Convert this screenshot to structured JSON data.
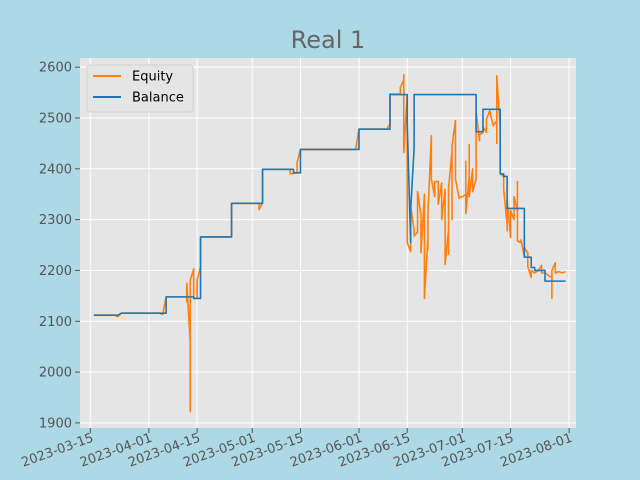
{
  "chart_data": {
    "type": "line",
    "title": "Real 1",
    "xlabel": "",
    "ylabel": "",
    "x_axis": "date",
    "xlim": [
      "2023-03-12",
      "2023-08-03"
    ],
    "ylim": [
      1890,
      2618
    ],
    "grid": true,
    "legend_position": "top-left",
    "xticks": [
      "2023-03-15",
      "2023-04-01",
      "2023-04-15",
      "2023-05-01",
      "2023-05-15",
      "2023-06-01",
      "2023-06-15",
      "2023-07-01",
      "2023-07-15",
      "2023-08-01"
    ],
    "yticks": [
      1900,
      2000,
      2100,
      2200,
      2300,
      2400,
      2500,
      2600
    ],
    "colors": {
      "background": "#add8e6",
      "plot_area": "#e5e5e5",
      "grid": "#ffffff",
      "title": "#666666",
      "ticks": "#555555"
    },
    "series": [
      {
        "name": "Equity",
        "color": "#ff7f0e",
        "points": [
          [
            "2023-03-16",
            2112
          ],
          [
            "2023-03-22",
            2112
          ],
          [
            "2023-03-23",
            2109
          ],
          [
            "2023-03-24",
            2116
          ],
          [
            "2023-04-04",
            2116
          ],
          [
            "2023-04-05",
            2113
          ],
          [
            "2023-04-06",
            2148
          ],
          [
            "2023-04-12",
            2148
          ],
          [
            "2023-04-12",
            2138
          ],
          [
            "2023-04-12",
            2175
          ],
          [
            "2023-04-13",
            2060
          ],
          [
            "2023-04-13",
            1990
          ],
          [
            "2023-04-13",
            1935
          ],
          [
            "2023-04-13",
            2005
          ],
          [
            "2023-04-13",
            1922
          ],
          [
            "2023-04-13",
            2180
          ],
          [
            "2023-04-14",
            2203
          ],
          [
            "2023-04-14",
            2145
          ],
          [
            "2023-04-15",
            2145
          ],
          [
            "2023-04-15",
            2180
          ],
          [
            "2023-04-16",
            2208
          ],
          [
            "2023-04-16",
            2220
          ],
          [
            "2023-04-16",
            2266
          ],
          [
            "2023-04-25",
            2266
          ],
          [
            "2023-04-25",
            2312
          ],
          [
            "2023-04-25",
            2332
          ],
          [
            "2023-05-03",
            2332
          ],
          [
            "2023-05-03",
            2320
          ],
          [
            "2023-05-04",
            2333
          ],
          [
            "2023-05-04",
            2399
          ],
          [
            "2023-05-12",
            2399
          ],
          [
            "2023-05-12",
            2390
          ],
          [
            "2023-05-14",
            2392
          ],
          [
            "2023-05-14",
            2412
          ],
          [
            "2023-05-15",
            2438
          ],
          [
            "2023-05-31",
            2438
          ],
          [
            "2023-06-01",
            2478
          ],
          [
            "2023-06-09",
            2478
          ],
          [
            "2023-06-10",
            2488
          ],
          [
            "2023-06-10",
            2547
          ],
          [
            "2023-06-13",
            2547
          ],
          [
            "2023-06-13",
            2560
          ],
          [
            "2023-06-14",
            2575
          ],
          [
            "2023-06-14",
            2540
          ],
          [
            "2023-06-14",
            2585
          ],
          [
            "2023-06-14",
            2432
          ],
          [
            "2023-06-15",
            2545
          ],
          [
            "2023-06-15",
            2475
          ],
          [
            "2023-06-15",
            2305
          ],
          [
            "2023-06-15",
            2255
          ],
          [
            "2023-06-16",
            2237
          ],
          [
            "2023-06-16",
            2270
          ],
          [
            "2023-06-16",
            2325
          ],
          [
            "2023-06-17",
            2280
          ],
          [
            "2023-06-17",
            2268
          ],
          [
            "2023-06-18",
            2275
          ],
          [
            "2023-06-18",
            2330
          ],
          [
            "2023-06-18",
            2285
          ],
          [
            "2023-06-18",
            2355
          ],
          [
            "2023-06-19",
            2308
          ],
          [
            "2023-06-19",
            2256
          ],
          [
            "2023-06-19",
            2235
          ],
          [
            "2023-06-20",
            2350
          ],
          [
            "2023-06-20",
            2215
          ],
          [
            "2023-06-20",
            2175
          ],
          [
            "2023-06-20",
            2145
          ],
          [
            "2023-06-21",
            2265
          ],
          [
            "2023-06-21",
            2240
          ],
          [
            "2023-06-21",
            2310
          ],
          [
            "2023-06-22",
            2465
          ],
          [
            "2023-06-22",
            2380
          ],
          [
            "2023-06-23",
            2345
          ],
          [
            "2023-06-23",
            2375
          ],
          [
            "2023-06-24",
            2375
          ],
          [
            "2023-06-24",
            2330
          ],
          [
            "2023-06-25",
            2372
          ],
          [
            "2023-06-25",
            2315
          ],
          [
            "2023-06-25",
            2300
          ],
          [
            "2023-06-26",
            2360
          ],
          [
            "2023-06-26",
            2245
          ],
          [
            "2023-06-26",
            2212
          ],
          [
            "2023-06-27",
            2280
          ],
          [
            "2023-06-27",
            2232
          ],
          [
            "2023-06-27",
            2362
          ],
          [
            "2023-06-28",
            2435
          ],
          [
            "2023-06-28",
            2300
          ],
          [
            "2023-06-28",
            2395
          ],
          [
            "2023-06-28",
            2445
          ],
          [
            "2023-06-29",
            2495
          ],
          [
            "2023-06-29",
            2380
          ],
          [
            "2023-06-30",
            2345
          ],
          [
            "2023-06-30",
            2342
          ],
          [
            "2023-07-01",
            2345
          ],
          [
            "2023-07-02",
            2350
          ],
          [
            "2023-07-02",
            2415
          ],
          [
            "2023-07-02",
            2312
          ],
          [
            "2023-07-03",
            2385
          ],
          [
            "2023-07-03",
            2448
          ],
          [
            "2023-07-03",
            2345
          ],
          [
            "2023-07-04",
            2400
          ],
          [
            "2023-07-04",
            2355
          ],
          [
            "2023-07-05",
            2380
          ],
          [
            "2023-07-05",
            2455
          ],
          [
            "2023-07-05",
            2512
          ],
          [
            "2023-07-06",
            2455
          ],
          [
            "2023-07-06",
            2467
          ],
          [
            "2023-07-07",
            2472
          ],
          [
            "2023-07-07",
            2482
          ],
          [
            "2023-07-08",
            2472
          ],
          [
            "2023-07-08",
            2498
          ],
          [
            "2023-07-09",
            2515
          ],
          [
            "2023-07-09",
            2512
          ],
          [
            "2023-07-10",
            2485
          ],
          [
            "2023-07-11",
            2495
          ],
          [
            "2023-07-11",
            2450
          ],
          [
            "2023-07-11",
            2583
          ],
          [
            "2023-07-12",
            2480
          ],
          [
            "2023-07-12",
            2390
          ],
          [
            "2023-07-13",
            2385
          ],
          [
            "2023-07-13",
            2360
          ],
          [
            "2023-07-14",
            2290
          ],
          [
            "2023-07-14",
            2278
          ],
          [
            "2023-07-14",
            2340
          ],
          [
            "2023-07-15",
            2265
          ],
          [
            "2023-07-15",
            2318
          ],
          [
            "2023-07-16",
            2300
          ],
          [
            "2023-07-16",
            2345
          ],
          [
            "2023-07-17",
            2315
          ],
          [
            "2023-07-17",
            2375
          ],
          [
            "2023-07-17",
            2258
          ],
          [
            "2023-07-18",
            2255
          ],
          [
            "2023-07-18",
            2260
          ],
          [
            "2023-07-19",
            2228
          ],
          [
            "2023-07-19",
            2245
          ],
          [
            "2023-07-20",
            2235
          ],
          [
            "2023-07-20",
            2208
          ],
          [
            "2023-07-21",
            2186
          ],
          [
            "2023-07-21",
            2200
          ],
          [
            "2023-07-22",
            2195
          ],
          [
            "2023-07-23",
            2200
          ],
          [
            "2023-07-24",
            2210
          ],
          [
            "2023-07-24",
            2195
          ],
          [
            "2023-07-25",
            2195
          ],
          [
            "2023-07-26",
            2190
          ],
          [
            "2023-07-27",
            2186
          ],
          [
            "2023-07-27",
            2160
          ],
          [
            "2023-07-27",
            2145
          ],
          [
            "2023-07-27",
            2200
          ],
          [
            "2023-07-28",
            2215
          ],
          [
            "2023-07-28",
            2195
          ],
          [
            "2023-07-29",
            2198
          ],
          [
            "2023-07-30",
            2195
          ],
          [
            "2023-07-31",
            2198
          ]
        ]
      },
      {
        "name": "Balance",
        "color": "#1f77b4",
        "points": [
          [
            "2023-03-16",
            2112
          ],
          [
            "2023-03-23",
            2112
          ],
          [
            "2023-03-24",
            2116
          ],
          [
            "2023-04-06",
            2116
          ],
          [
            "2023-04-06",
            2148
          ],
          [
            "2023-04-14",
            2148
          ],
          [
            "2023-04-14",
            2145
          ],
          [
            "2023-04-16",
            2145
          ],
          [
            "2023-04-16",
            2266
          ],
          [
            "2023-04-25",
            2266
          ],
          [
            "2023-04-25",
            2332
          ],
          [
            "2023-05-04",
            2332
          ],
          [
            "2023-05-04",
            2399
          ],
          [
            "2023-05-13",
            2399
          ],
          [
            "2023-05-13",
            2392
          ],
          [
            "2023-05-15",
            2392
          ],
          [
            "2023-05-15",
            2438
          ],
          [
            "2023-06-01",
            2438
          ],
          [
            "2023-06-01",
            2478
          ],
          [
            "2023-06-10",
            2478
          ],
          [
            "2023-06-10",
            2546
          ],
          [
            "2023-06-15",
            2546
          ],
          [
            "2023-06-15",
            2488
          ],
          [
            "2023-06-16",
            2255
          ],
          [
            "2023-06-16",
            2320
          ],
          [
            "2023-06-17",
            2440
          ],
          [
            "2023-06-17",
            2546
          ],
          [
            "2023-07-05",
            2546
          ],
          [
            "2023-07-05",
            2473
          ],
          [
            "2023-07-07",
            2473
          ],
          [
            "2023-07-07",
            2517
          ],
          [
            "2023-07-12",
            2517
          ],
          [
            "2023-07-12",
            2390
          ],
          [
            "2023-07-13",
            2390
          ],
          [
            "2023-07-13",
            2385
          ],
          [
            "2023-07-14",
            2385
          ],
          [
            "2023-07-14",
            2322
          ],
          [
            "2023-07-19",
            2322
          ],
          [
            "2023-07-19",
            2226
          ],
          [
            "2023-07-21",
            2226
          ],
          [
            "2023-07-21",
            2206
          ],
          [
            "2023-07-22",
            2206
          ],
          [
            "2023-07-22",
            2200
          ],
          [
            "2023-07-25",
            2200
          ],
          [
            "2023-07-25",
            2179
          ],
          [
            "2023-07-31",
            2179
          ]
        ]
      }
    ]
  }
}
